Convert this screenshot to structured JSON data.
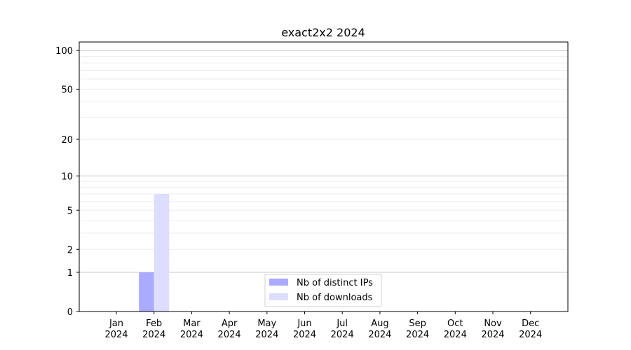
{
  "chart_data": {
    "type": "bar",
    "title": "exact2x2 2024",
    "xlabel": "",
    "ylabel": "",
    "yscale": "log(1+y)",
    "ylim": [
      0,
      116
    ],
    "yticks": [
      0,
      1,
      2,
      5,
      10,
      20,
      50,
      100
    ],
    "ytick_labels": [
      "0",
      "1",
      "2",
      "5",
      "10",
      "20",
      "50",
      "100"
    ],
    "grid": true,
    "legend": "lower center",
    "categories": [
      "Jan\n2024",
      "Feb\n2024",
      "Mar\n2024",
      "Apr\n2024",
      "May\n2024",
      "Jun\n2024",
      "Jul\n2024",
      "Aug\n2024",
      "Sep\n2024",
      "Oct\n2024",
      "Nov\n2024",
      "Dec\n2024"
    ],
    "category_lines": [
      [
        "Jan",
        "2024"
      ],
      [
        "Feb",
        "2024"
      ],
      [
        "Mar",
        "2024"
      ],
      [
        "Apr",
        "2024"
      ],
      [
        "May",
        "2024"
      ],
      [
        "Jun",
        "2024"
      ],
      [
        "Jul",
        "2024"
      ],
      [
        "Aug",
        "2024"
      ],
      [
        "Sep",
        "2024"
      ],
      [
        "Oct",
        "2024"
      ],
      [
        "Nov",
        "2024"
      ],
      [
        "Dec",
        "2024"
      ]
    ],
    "series": [
      {
        "name": "Nb of distinct IPs",
        "color": "#aaaaff",
        "values": [
          0,
          1,
          0,
          0,
          0,
          0,
          0,
          0,
          0,
          0,
          0,
          0
        ]
      },
      {
        "name": "Nb of downloads",
        "color": "#ddddff",
        "values": [
          0,
          7,
          0,
          0,
          0,
          0,
          0,
          0,
          0,
          0,
          0,
          0
        ]
      }
    ]
  }
}
